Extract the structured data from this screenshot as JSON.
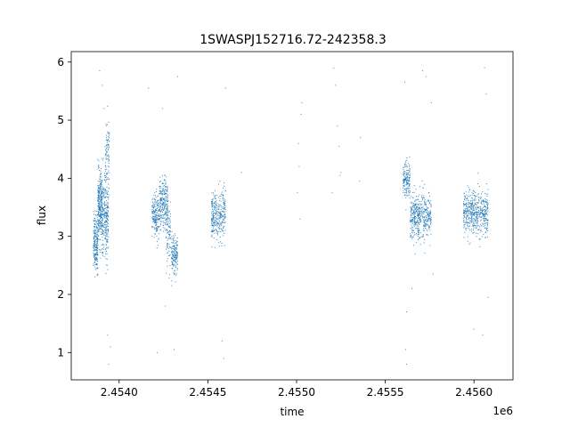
{
  "chart_data": {
    "type": "scatter",
    "title": "1SWASPJ152716.72-242358.3",
    "xlabel": "time",
    "ylabel": "flux",
    "x_offset_label": "1e6",
    "xlim": [
      2453730,
      2456220
    ],
    "ylim": [
      0.53,
      6.18
    ],
    "x_ticks": [
      2454000,
      2454500,
      2455000,
      2455500,
      2456000
    ],
    "x_tick_labels": [
      "2.4540",
      "2.4545",
      "2.4550",
      "2.4555",
      "2.4560"
    ],
    "y_ticks": [
      1,
      2,
      3,
      4,
      5,
      6
    ],
    "y_tick_labels": [
      "1",
      "2",
      "3",
      "4",
      "5",
      "6"
    ],
    "grid": false,
    "marker_color": "#1f77b4",
    "series": [
      {
        "point_clusters": [
          {
            "x_range": [
              2453855,
              2453880
            ],
            "y_center": 2.9,
            "y_spread": 0.45,
            "n": 220
          },
          {
            "x_range": [
              2453880,
              2453905
            ],
            "y_center": 3.5,
            "y_spread": 0.55,
            "n": 300
          },
          {
            "x_range": [
              2453905,
              2453940
            ],
            "y_center": 3.3,
            "y_spread": 0.6,
            "n": 260
          },
          {
            "x_range": [
              2453920,
              2453945
            ],
            "y_center": 4.4,
            "y_spread": 0.6,
            "n": 90
          },
          {
            "x_range": [
              2454185,
              2454225
            ],
            "y_center": 3.35,
            "y_spread": 0.35,
            "n": 180
          },
          {
            "x_range": [
              2454225,
              2454275
            ],
            "y_center": 3.55,
            "y_spread": 0.4,
            "n": 240
          },
          {
            "x_range": [
              2454265,
              2454290
            ],
            "y_center": 3.0,
            "y_spread": 0.5,
            "n": 90
          },
          {
            "x_range": [
              2454295,
              2454330
            ],
            "y_center": 2.7,
            "y_spread": 0.3,
            "n": 160
          },
          {
            "x_range": [
              2454520,
              2454600
            ],
            "y_center": 3.35,
            "y_spread": 0.4,
            "n": 320
          },
          {
            "x_range": [
              2455600,
              2455640
            ],
            "y_center": 3.95,
            "y_spread": 0.3,
            "n": 160
          },
          {
            "x_range": [
              2455640,
              2455760
            ],
            "y_center": 3.35,
            "y_spread": 0.35,
            "n": 460
          },
          {
            "x_range": [
              2455940,
              2456080
            ],
            "y_center": 3.4,
            "y_spread": 0.35,
            "n": 520
          }
        ],
        "sparse_points": [
          [
            2453890,
            5.85
          ],
          [
            2453905,
            5.6
          ],
          [
            2453915,
            5.2
          ],
          [
            2453935,
            1.3
          ],
          [
            2453940,
            0.8
          ],
          [
            2453950,
            1.1
          ],
          [
            2454165,
            5.55
          ],
          [
            2454215,
            1.0
          ],
          [
            2454245,
            5.2
          ],
          [
            2454260,
            1.8
          ],
          [
            2454310,
            1.05
          ],
          [
            2454330,
            5.75
          ],
          [
            2454600,
            5.55
          ],
          [
            2454590,
            0.9
          ],
          [
            2454580,
            1.2
          ],
          [
            2454690,
            4.1
          ],
          [
            2455010,
            4.6
          ],
          [
            2455015,
            4.2
          ],
          [
            2455020,
            3.3
          ],
          [
            2455005,
            3.75
          ],
          [
            2455025,
            5.1
          ],
          [
            2455030,
            5.3
          ],
          [
            2455210,
            5.9
          ],
          [
            2455220,
            5.6
          ],
          [
            2455230,
            4.9
          ],
          [
            2455240,
            4.55
          ],
          [
            2455245,
            4.05
          ],
          [
            2455250,
            4.1
          ],
          [
            2455200,
            3.75
          ],
          [
            2455360,
            4.7
          ],
          [
            2455355,
            3.95
          ],
          [
            2455610,
            5.65
          ],
          [
            2455620,
            1.7
          ],
          [
            2455615,
            1.05
          ],
          [
            2455620,
            0.8
          ],
          [
            2455650,
            2.1
          ],
          [
            2455710,
            5.85
          ],
          [
            2455730,
            5.75
          ],
          [
            2455760,
            5.3
          ],
          [
            2455770,
            2.35
          ],
          [
            2456000,
            1.4
          ],
          [
            2456050,
            1.3
          ],
          [
            2456060,
            5.9
          ],
          [
            2456070,
            5.45
          ],
          [
            2456080,
            1.95
          ]
        ]
      }
    ]
  }
}
